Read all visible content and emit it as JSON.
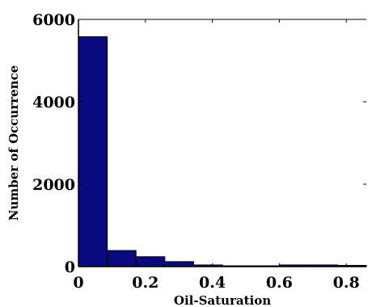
{
  "chart_data": {
    "type": "bar",
    "title": "",
    "xlabel": "Oil-Saturation",
    "ylabel": "Number of Occurrence",
    "xlim": [
      0,
      0.86
    ],
    "ylim": [
      0,
      6000
    ],
    "x_ticks": [
      0,
      0.2,
      0.4,
      0.6,
      0.8
    ],
    "x_tick_labels": [
      "0",
      "0.2",
      "0.4",
      "0.6",
      "0.8"
    ],
    "y_ticks": [
      0,
      2000,
      4000,
      6000
    ],
    "y_tick_labels": [
      "0",
      "2000",
      "4000",
      "6000"
    ],
    "bin_edges": [
      0,
      0.086,
      0.172,
      0.258,
      0.344,
      0.43,
      0.516,
      0.602,
      0.688,
      0.774,
      0.86
    ],
    "values": [
      5580,
      390,
      240,
      120,
      40,
      20,
      20,
      40,
      40,
      30
    ],
    "bar_color": "#0a0a80",
    "grid": false
  }
}
